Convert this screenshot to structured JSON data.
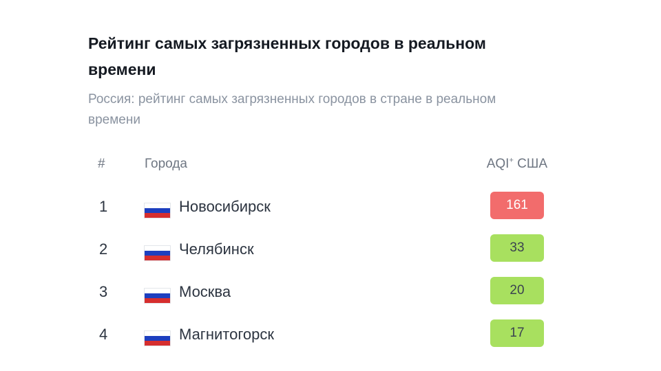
{
  "page": {
    "title": "Рейтинг самых загрязненных городов в реальном времени",
    "subtitle": "Россия: рейтинг самых загрязненных городов в стране в реальном времени"
  },
  "table": {
    "headers": {
      "rank": "#",
      "city": "Города",
      "aqi": "AQI",
      "aqi_sup": "+",
      "aqi_suffix": " США"
    },
    "rows": [
      {
        "rank": "1",
        "city": "Новосибирск",
        "aqi": "161",
        "status": "unhealthy",
        "color": "#f26c6c",
        "flag": "russia-flag-icon"
      },
      {
        "rank": "2",
        "city": "Челябинск",
        "aqi": "33",
        "status": "good",
        "color": "#a8e05f",
        "flag": "russia-flag-icon"
      },
      {
        "rank": "3",
        "city": "Москва",
        "aqi": "20",
        "status": "good",
        "color": "#a8e05f",
        "flag": "russia-flag-icon"
      },
      {
        "rank": "4",
        "city": "Магнитогорск",
        "aqi": "17",
        "status": "good",
        "color": "#a8e05f",
        "flag": "russia-flag-icon"
      }
    ]
  }
}
